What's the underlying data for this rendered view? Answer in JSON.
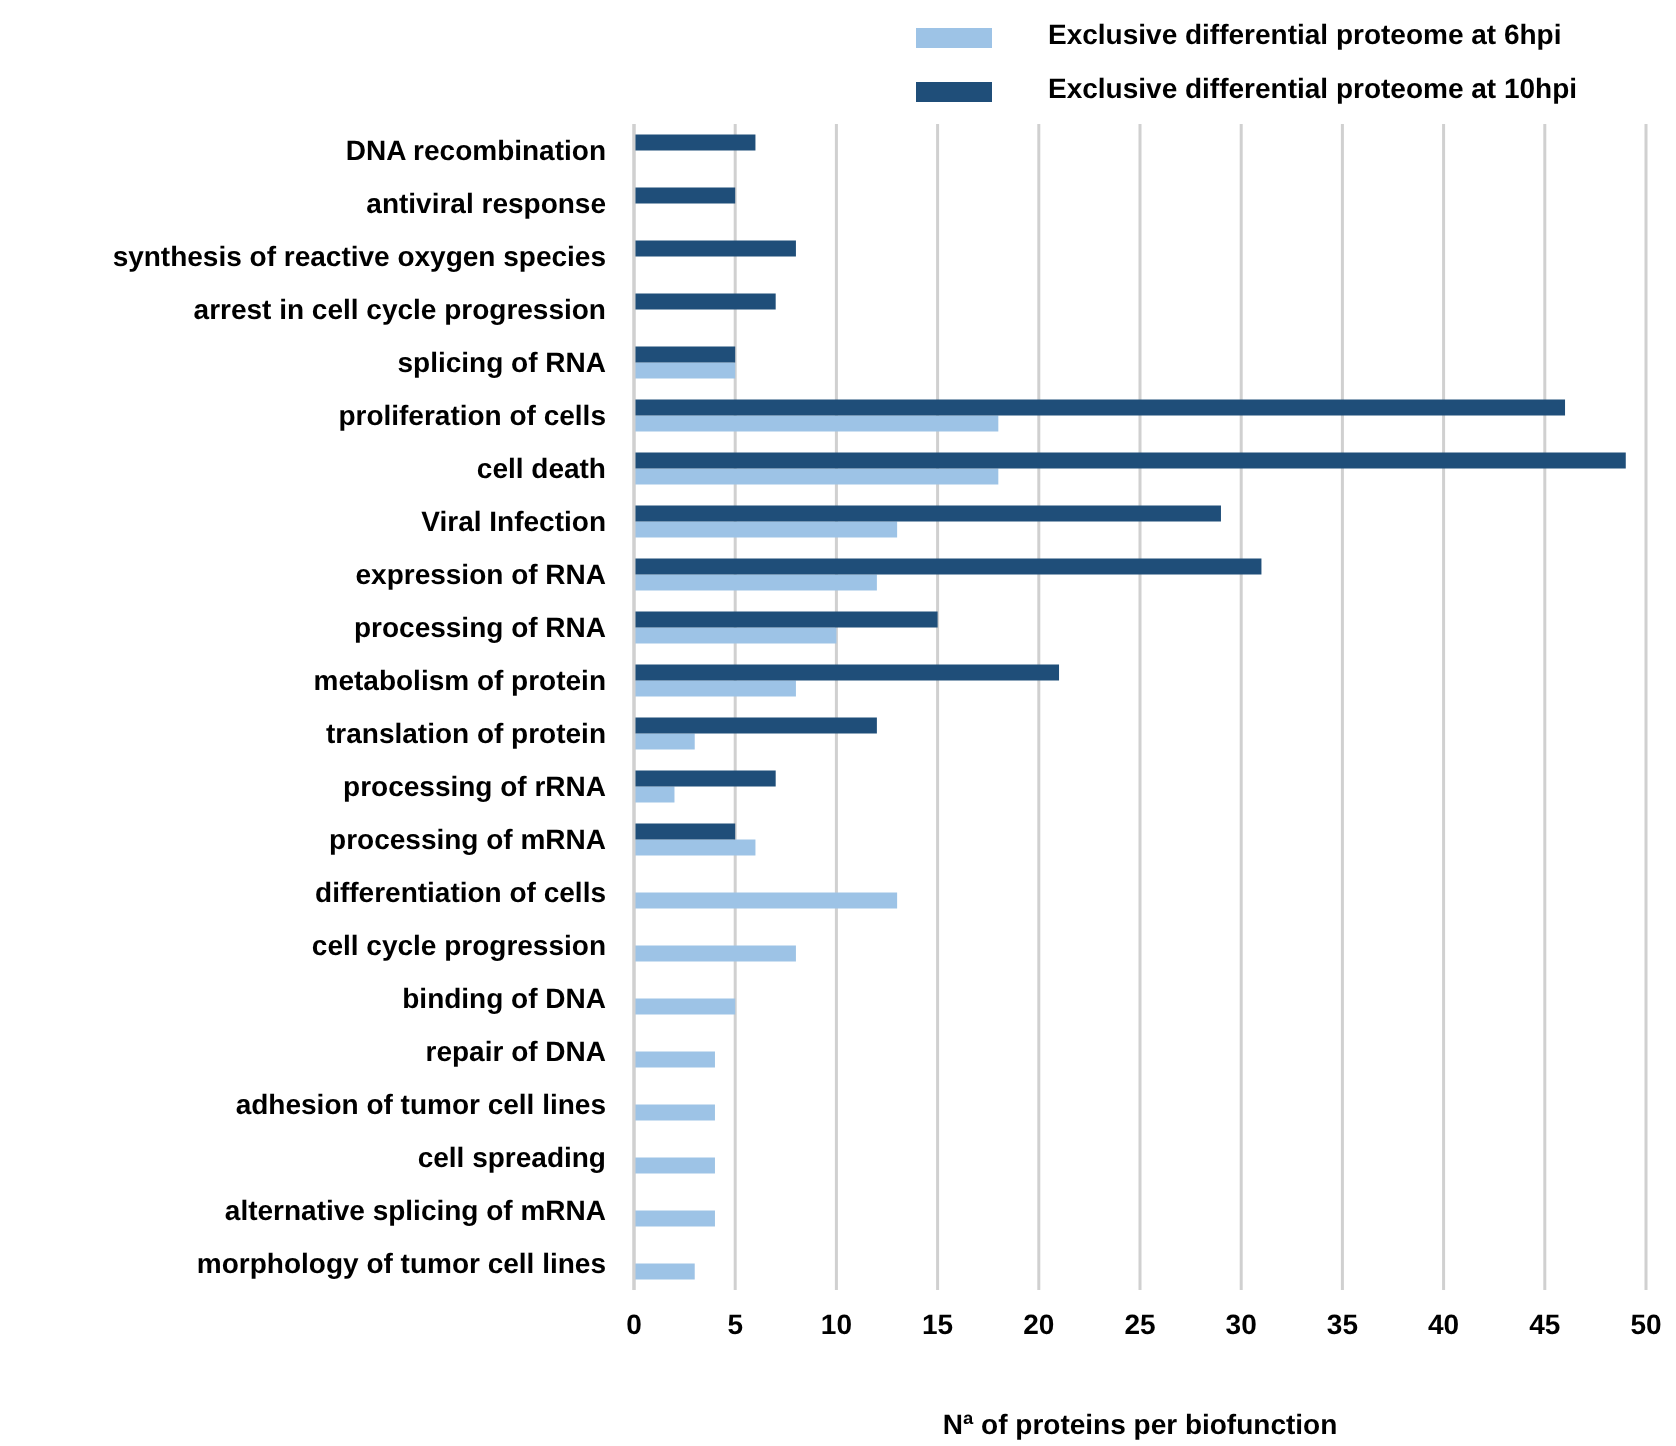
{
  "chart_data": {
    "type": "bar",
    "orientation": "horizontal",
    "xlabel": "Nª of proteins per biofunction",
    "categories": [
      "DNA recombination",
      "antiviral response",
      "synthesis of reactive oxygen species",
      "arrest in cell cycle progression",
      "splicing of RNA",
      "proliferation of cells",
      "cell death",
      "Viral Infection",
      "expression of RNA",
      "processing of RNA",
      "metabolism of protein",
      "translation of protein",
      "processing of rRNA",
      "processing of mRNA",
      "differentiation of cells",
      "cell cycle progression",
      "binding of DNA",
      "repair of DNA",
      "adhesion of tumor cell lines",
      "cell spreading",
      "alternative splicing of mRNA",
      "morphology of tumor cell lines"
    ],
    "series": [
      {
        "name": "Exclusive differential proteome at 6hpi",
        "color": "#9dc3e6",
        "values": [
          null,
          null,
          null,
          null,
          5,
          18,
          18,
          13,
          12,
          10,
          8,
          3,
          2,
          6,
          13,
          8,
          5,
          4,
          4,
          4,
          4,
          3
        ]
      },
      {
        "name": "Exclusive differential proteome at 10hpi",
        "color": "#1f4e79",
        "values": [
          6,
          5,
          8,
          7,
          5,
          46,
          49,
          29,
          31,
          15,
          21,
          12,
          7,
          5,
          null,
          null,
          null,
          null,
          null,
          null,
          null,
          null
        ]
      }
    ],
    "xlim": [
      0,
      50
    ],
    "xticks": [
      0,
      5,
      10,
      15,
      20,
      25,
      30,
      35,
      40,
      45,
      50
    ],
    "grid": "x",
    "legend": "top right"
  }
}
